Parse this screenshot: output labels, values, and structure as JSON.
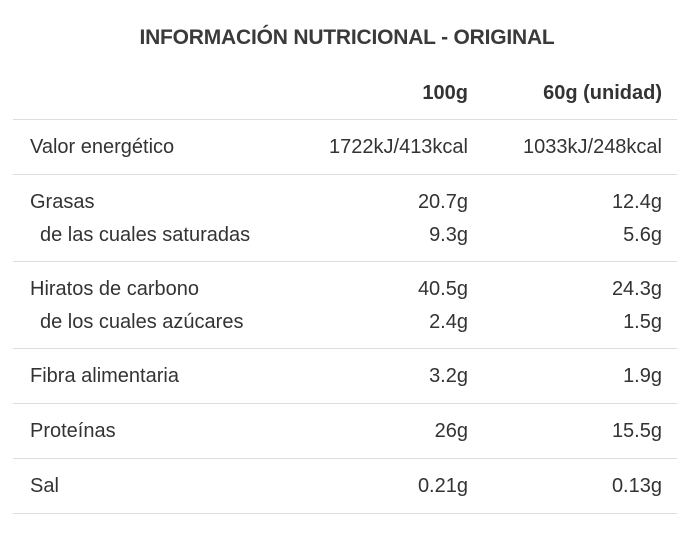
{
  "title": "INFORMACIÓN NUTRICIONAL - ORIGINAL",
  "columns": [
    "100g",
    "60g (unidad)"
  ],
  "rows": [
    {
      "label": "Valor energético",
      "v100": "1722kJ/413kcal",
      "v60": "1033kJ/248kcal"
    },
    {
      "label": "Grasas",
      "v100": "20.7g",
      "v60": "12.4g",
      "sub": {
        "label": "de las cuales saturadas",
        "v100": "9.3g",
        "v60": "5.6g"
      }
    },
    {
      "label": "Hiratos de carbono",
      "v100": "40.5g",
      "v60": "24.3g",
      "sub": {
        "label": "de los cuales azúcares",
        "v100": "2.4g",
        "v60": "1.5g"
      }
    },
    {
      "label": "Fibra alimentaria",
      "v100": "3.2g",
      "v60": "1.9g"
    },
    {
      "label": "Proteínas",
      "v100": "26g",
      "v60": "15.5g"
    },
    {
      "label": "Sal",
      "v100": "0.21g",
      "v60": "0.13g"
    }
  ]
}
